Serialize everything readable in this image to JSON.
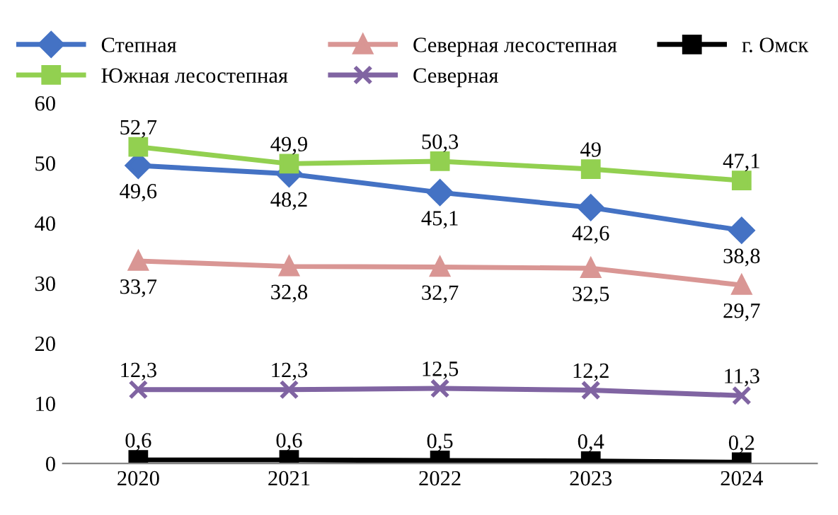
{
  "chart_data": {
    "type": "line",
    "categories": [
      "2020",
      "2021",
      "2022",
      "2023",
      "2024"
    ],
    "ylim": [
      0,
      60
    ],
    "yticks": [
      0,
      10,
      20,
      30,
      40,
      50,
      60
    ],
    "grid": false,
    "legend": "top",
    "series": [
      {
        "name": "Степная",
        "color": "#4472c4",
        "marker": "diamond",
        "values": [
          49.6,
          48.2,
          45.1,
          42.6,
          38.8
        ],
        "value_labels": [
          "49,6",
          "48,2",
          "45,1",
          "42,6",
          "38,8"
        ]
      },
      {
        "name": "Южная лесостепная",
        "color": "#92d050",
        "marker": "square",
        "values": [
          52.7,
          49.9,
          50.3,
          49,
          47.1
        ],
        "value_labels": [
          "52,7",
          "49,9",
          "50,3",
          "49",
          "47,1"
        ]
      },
      {
        "name": "Северная лесостепная",
        "color": "#d99694",
        "marker": "triangle",
        "values": [
          33.7,
          32.8,
          32.7,
          32.5,
          29.7
        ],
        "value_labels": [
          "33,7",
          "32,8",
          "32,7",
          "32,5",
          "29,7"
        ]
      },
      {
        "name": "Северная",
        "color": "#8064a2",
        "marker": "cross",
        "values": [
          12.3,
          12.3,
          12.5,
          12.2,
          11.3
        ],
        "value_labels": [
          "12,3",
          "12,3",
          "12,5",
          "12,2",
          "11,3"
        ]
      },
      {
        "name": "г. Омск",
        "color": "#000000",
        "marker": "square",
        "values": [
          0.6,
          0.6,
          0.5,
          0.4,
          0.2
        ],
        "value_labels": [
          "0,6",
          "0,6",
          "0,5",
          "0,4",
          "0,2"
        ]
      }
    ]
  }
}
